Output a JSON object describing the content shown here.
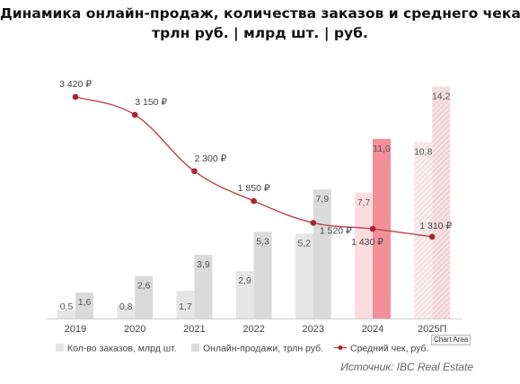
{
  "title_line1": "Динамика онлайн-продаж, количества заказов и среднего чека,",
  "title_line2": "трлн руб. | млрд шт. | руб.",
  "source": "Источник: IBC Real Estate",
  "tooltip": "Chart Area",
  "colors": {
    "orders": "#e6e6e6",
    "sales": "#dadada",
    "highlight_sales": "#f28f99",
    "highlight_orders": "#fbdde0",
    "forecast_orders": "#f7ecec",
    "forecast_sales": "#f4dede",
    "line": "#c0414b",
    "marker": "#a6232f",
    "text": "#555555"
  },
  "chart_data": {
    "type": "bar",
    "categories": [
      "2019",
      "2020",
      "2021",
      "2022",
      "2023",
      "2024",
      "2025П"
    ],
    "series": [
      {
        "name": "Кол-во заказов, млрд шт.",
        "type": "bar",
        "values": [
          0.5,
          0.8,
          1.7,
          2.9,
          5.2,
          7.7,
          10.8
        ],
        "labels": [
          "0,5",
          "0,8",
          "1,7",
          "2,9",
          "5,2",
          "7,7",
          "10,8"
        ]
      },
      {
        "name": "Онлайн-продажи, трлн руб.",
        "type": "bar",
        "values": [
          1.6,
          2.6,
          3.9,
          5.3,
          7.9,
          11.0,
          14.2
        ],
        "labels": [
          "1,6",
          "2,6",
          "3,9",
          "5,3",
          "7,9",
          "11,0",
          "14,2"
        ]
      },
      {
        "name": "Средний чек, руб.",
        "type": "line",
        "values": [
          3420,
          3150,
          2300,
          1850,
          1520,
          1430,
          1310
        ],
        "labels": [
          "3 420 ₽",
          "3 150 ₽",
          "2 300 ₽",
          "1 850 ₽",
          "1 520 ₽",
          "1 430 ₽",
          "1 310 ₽"
        ]
      }
    ],
    "highlight_category": "2024",
    "forecast_category": "2025П",
    "legend_position": "bottom",
    "grid": false
  }
}
